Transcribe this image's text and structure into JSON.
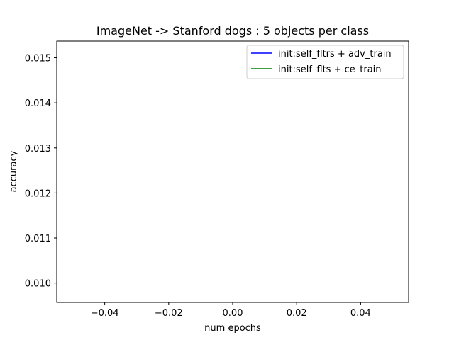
{
  "chart_data": {
    "type": "line",
    "title": "ImageNet -> Stanford dogs : 5 objects per class",
    "xlabel": "num epochs",
    "ylabel": "accuracy",
    "xlim": [
      -0.055,
      0.055
    ],
    "ylim": [
      0.00957,
      0.01537
    ],
    "xticks": [
      -0.04,
      -0.02,
      0.0,
      0.02,
      0.04
    ],
    "xtick_labels": [
      "−0.04",
      "−0.02",
      "0.00",
      "0.02",
      "0.04"
    ],
    "yticks": [
      0.01,
      0.011,
      0.012,
      0.013,
      0.014,
      0.015
    ],
    "ytick_labels": [
      "0.010",
      "0.011",
      "0.012",
      "0.013",
      "0.014",
      "0.015"
    ],
    "grid": false,
    "legend_position": "top-right",
    "series": [
      {
        "name": "init:self_fltrs + adv_train",
        "color": "#0000ff",
        "x": [],
        "y": []
      },
      {
        "name": "init:self_flts + ce_train",
        "color": "#008000",
        "x": [],
        "y": []
      }
    ]
  }
}
